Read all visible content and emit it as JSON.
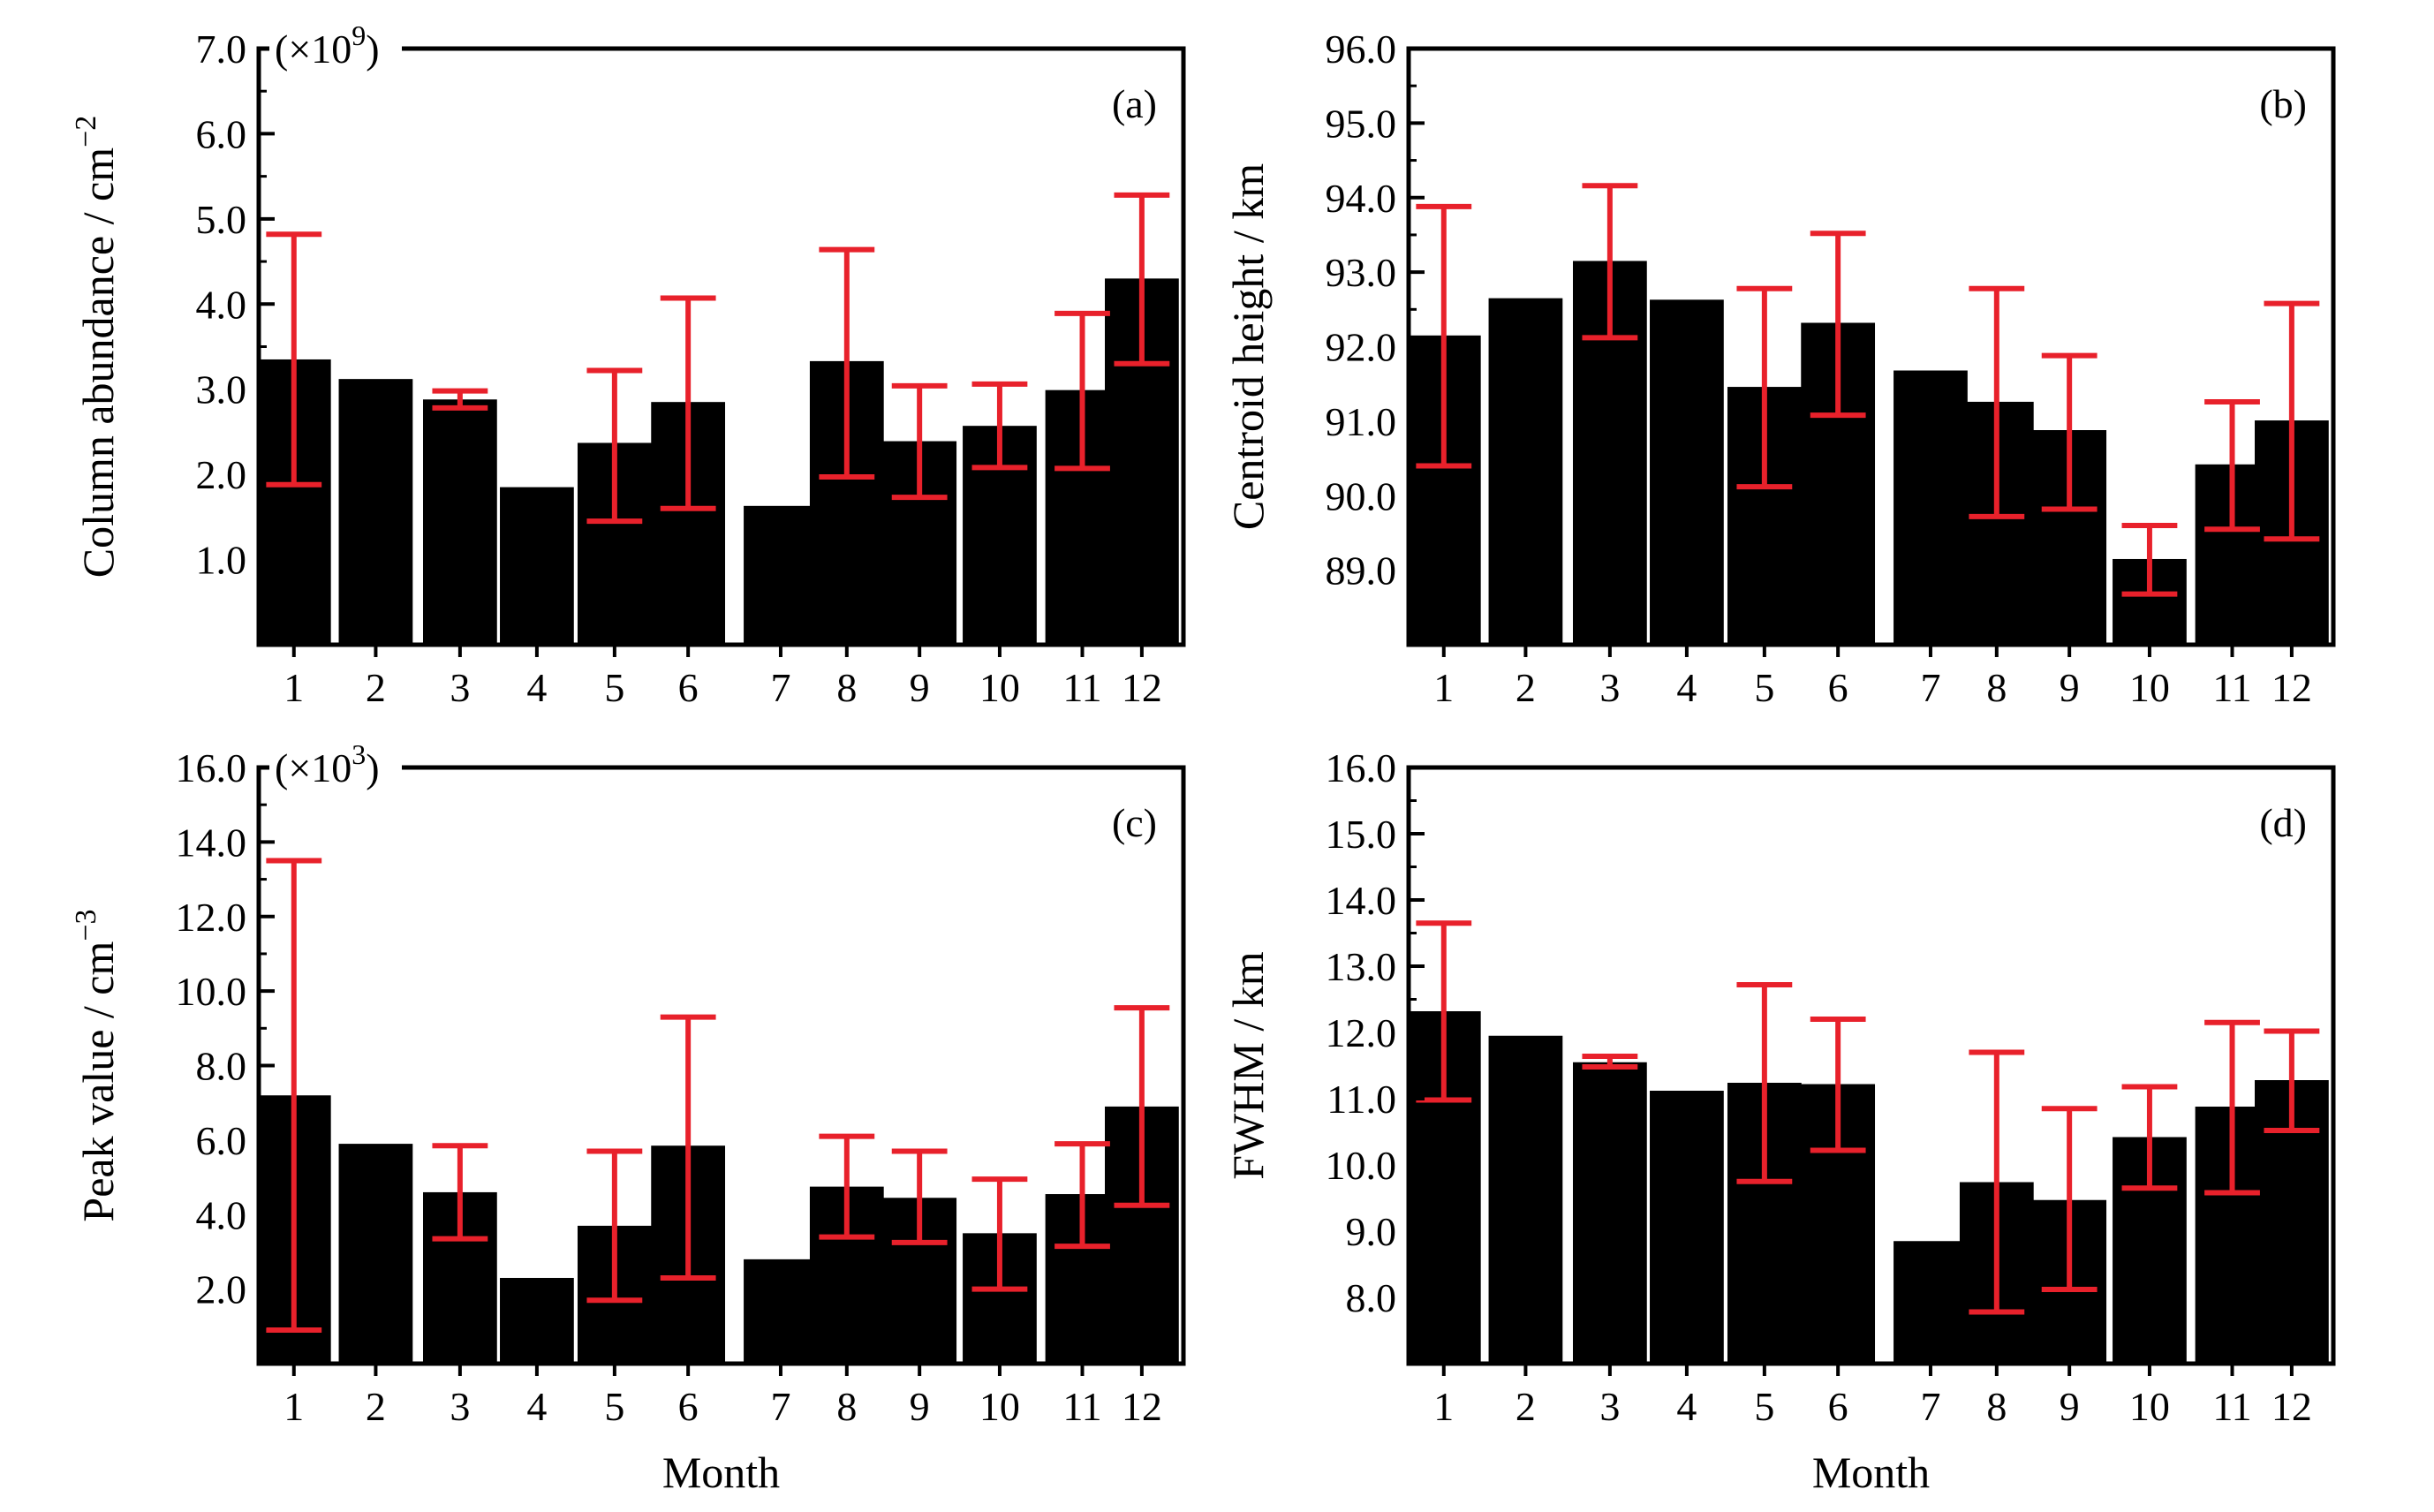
{
  "figure": {
    "x_axis_label": "Month",
    "colors": {
      "bar": "#000000",
      "error_bar": "#e8212b",
      "axis": "#000000"
    }
  },
  "chart_data": [
    {
      "type": "bar",
      "panel": "(a)",
      "ylabel": "Column abundance / cm",
      "ylabel_exponent": "−2",
      "multiplier": "(×10",
      "multiplier_exponent": "9",
      "multiplier_close": ")",
      "categories": [
        "1",
        "2",
        "3",
        "4",
        "5",
        "6",
        "7",
        "8",
        "9",
        "10",
        "11",
        "12"
      ],
      "values": [
        3.35,
        3.12,
        2.88,
        1.85,
        2.37,
        2.85,
        1.63,
        3.33,
        2.39,
        2.57,
        2.99,
        4.3
      ],
      "error_low": [
        1.88,
        null,
        2.78,
        null,
        1.45,
        1.6,
        null,
        1.97,
        1.73,
        2.08,
        2.07,
        3.3
      ],
      "error_high": [
        4.82,
        null,
        2.98,
        null,
        3.22,
        4.07,
        null,
        4.64,
        3.04,
        3.06,
        3.89,
        5.28
      ],
      "ylim": [
        0,
        7.0
      ],
      "yticks": [
        "1.0",
        "2.0",
        "3.0",
        "4.0",
        "5.0",
        "6.0",
        "7.0"
      ],
      "ytick_values": [
        1,
        2,
        3,
        4,
        5,
        6,
        7
      ],
      "show_xlabel": false
    },
    {
      "type": "bar",
      "panel": "(b)",
      "ylabel": "Centroid height / km",
      "categories": [
        "1",
        "2",
        "3",
        "4",
        "5",
        "6",
        "7",
        "8",
        "9",
        "10",
        "11",
        "12"
      ],
      "values": [
        92.15,
        92.65,
        93.15,
        92.63,
        91.46,
        92.32,
        91.68,
        91.26,
        90.88,
        89.15,
        90.42,
        91.01
      ],
      "error_low": [
        90.4,
        null,
        92.12,
        null,
        90.12,
        91.08,
        null,
        89.72,
        89.82,
        88.68,
        89.55,
        89.42
      ],
      "error_high": [
        93.88,
        null,
        94.16,
        null,
        92.78,
        93.52,
        null,
        92.78,
        91.88,
        89.6,
        91.26,
        92.58
      ],
      "ylim": [
        88.0,
        96.0
      ],
      "yticks": [
        "89.0",
        "90.0",
        "91.0",
        "92.0",
        "93.0",
        "94.0",
        "95.0",
        "96.0"
      ],
      "ytick_values": [
        89,
        90,
        91,
        92,
        93,
        94,
        95,
        96
      ],
      "show_xlabel": false
    },
    {
      "type": "bar",
      "panel": "(c)",
      "ylabel": "Peak value / cm",
      "ylabel_exponent": "−3",
      "multiplier": "(×10",
      "multiplier_exponent": "3",
      "multiplier_close": ")",
      "categories": [
        "1",
        "2",
        "3",
        "4",
        "5",
        "6",
        "7",
        "8",
        "9",
        "10",
        "11",
        "12"
      ],
      "values": [
        7.2,
        5.9,
        4.6,
        2.3,
        3.7,
        5.85,
        2.8,
        4.75,
        4.45,
        3.5,
        4.55,
        6.9
      ],
      "error_low": [
        0.9,
        null,
        3.35,
        null,
        1.7,
        2.3,
        null,
        3.4,
        3.25,
        2.0,
        3.15,
        4.25
      ],
      "error_high": [
        13.5,
        null,
        5.85,
        null,
        5.7,
        9.3,
        null,
        6.1,
        5.7,
        4.95,
        5.9,
        9.55
      ],
      "ylim": [
        0,
        16.0
      ],
      "yticks": [
        "2.0",
        "4.0",
        "6.0",
        "8.0",
        "10.0",
        "12.0",
        "14.0",
        "16.0"
      ],
      "ytick_values": [
        2,
        4,
        6,
        8,
        10,
        12,
        14,
        16
      ],
      "show_xlabel": true
    },
    {
      "type": "bar",
      "panel": "(d)",
      "ylabel": "FWHM / km",
      "categories": [
        "1",
        "2",
        "3",
        "4",
        "5",
        "6",
        "7",
        "8",
        "9",
        "10",
        "11",
        "12"
      ],
      "values": [
        12.32,
        11.95,
        11.55,
        11.12,
        11.24,
        11.22,
        8.85,
        9.74,
        9.47,
        10.42,
        10.88,
        11.28
      ],
      "error_low": [
        10.98,
        null,
        11.48,
        null,
        9.75,
        10.22,
        null,
        7.78,
        8.12,
        9.65,
        9.58,
        10.52
      ],
      "error_high": [
        13.65,
        null,
        11.64,
        null,
        12.72,
        12.2,
        null,
        11.7,
        10.85,
        11.18,
        12.15,
        12.02
      ],
      "ylim": [
        7.0,
        16.0
      ],
      "yticks": [
        "8.0",
        "9.0",
        "10.0",
        "11.0",
        "12.0",
        "13.0",
        "14.0",
        "15.0",
        "16.0"
      ],
      "ytick_values": [
        8,
        9,
        10,
        11,
        12,
        13,
        14,
        15,
        16
      ],
      "show_xlabel": true
    }
  ]
}
